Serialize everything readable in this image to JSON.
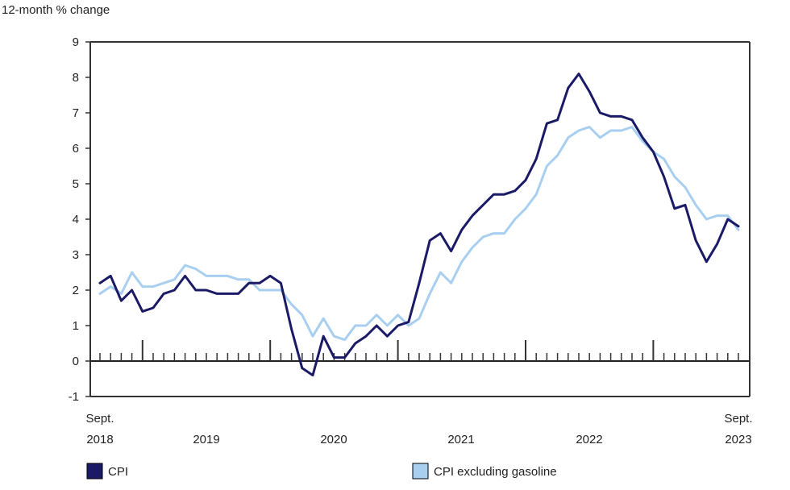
{
  "chart_data": {
    "type": "line",
    "ylabel": "12-month % change",
    "ylim": [
      -1,
      9
    ],
    "y_ticks": [
      "9",
      "8",
      "7",
      "6",
      "5",
      "4",
      "3",
      "2",
      "1",
      "0",
      "-1"
    ],
    "x_start_label": [
      "Sept.",
      "2018"
    ],
    "x_end_label": [
      "Sept.",
      "2023"
    ],
    "x_year_labels": [
      "2019",
      "2020",
      "2021",
      "2022"
    ],
    "grid": false,
    "legend_position": "bottom",
    "x": [
      "2018-09",
      "2018-10",
      "2018-11",
      "2018-12",
      "2019-01",
      "2019-02",
      "2019-03",
      "2019-04",
      "2019-05",
      "2019-06",
      "2019-07",
      "2019-08",
      "2019-09",
      "2019-10",
      "2019-11",
      "2019-12",
      "2020-01",
      "2020-02",
      "2020-03",
      "2020-04",
      "2020-05",
      "2020-06",
      "2020-07",
      "2020-08",
      "2020-09",
      "2020-10",
      "2020-11",
      "2020-12",
      "2021-01",
      "2021-02",
      "2021-03",
      "2021-04",
      "2021-05",
      "2021-06",
      "2021-07",
      "2021-08",
      "2021-09",
      "2021-10",
      "2021-11",
      "2021-12",
      "2022-01",
      "2022-02",
      "2022-03",
      "2022-04",
      "2022-05",
      "2022-06",
      "2022-07",
      "2022-08",
      "2022-09",
      "2022-10",
      "2022-11",
      "2022-12",
      "2023-01",
      "2023-02",
      "2023-03",
      "2023-04",
      "2023-05",
      "2023-06",
      "2023-07",
      "2023-08",
      "2023-09"
    ],
    "series": [
      {
        "name": "CPI",
        "color": "#1a1a66",
        "values": [
          2.2,
          2.4,
          1.7,
          2.0,
          1.4,
          1.5,
          1.9,
          2.0,
          2.4,
          2.0,
          2.0,
          1.9,
          1.9,
          1.9,
          2.2,
          2.2,
          2.4,
          2.2,
          0.9,
          -0.2,
          -0.4,
          0.7,
          0.1,
          0.1,
          0.5,
          0.7,
          1.0,
          0.7,
          1.0,
          1.1,
          2.2,
          3.4,
          3.6,
          3.1,
          3.7,
          4.1,
          4.4,
          4.7,
          4.7,
          4.8,
          5.1,
          5.7,
          6.7,
          6.8,
          7.7,
          8.1,
          7.6,
          7.0,
          6.9,
          6.9,
          6.8,
          6.3,
          5.9,
          5.2,
          4.3,
          4.4,
          3.4,
          2.8,
          3.3,
          4.0,
          3.8
        ]
      },
      {
        "name": "CPI excluding gasoline",
        "color": "#a8cff0",
        "values": [
          1.9,
          2.1,
          1.9,
          2.5,
          2.1,
          2.1,
          2.2,
          2.3,
          2.7,
          2.6,
          2.4,
          2.4,
          2.4,
          2.3,
          2.3,
          2.0,
          2.0,
          2.0,
          1.6,
          1.3,
          0.7,
          1.2,
          0.7,
          0.6,
          1.0,
          1.0,
          1.3,
          1.0,
          1.3,
          1.0,
          1.2,
          1.9,
          2.5,
          2.2,
          2.8,
          3.2,
          3.5,
          3.6,
          3.6,
          4.0,
          4.3,
          4.7,
          5.5,
          5.8,
          6.3,
          6.5,
          6.6,
          6.3,
          6.5,
          6.5,
          6.6,
          6.2,
          5.9,
          5.7,
          5.2,
          4.9,
          4.4,
          4.0,
          4.1,
          4.1,
          3.7
        ]
      }
    ]
  }
}
